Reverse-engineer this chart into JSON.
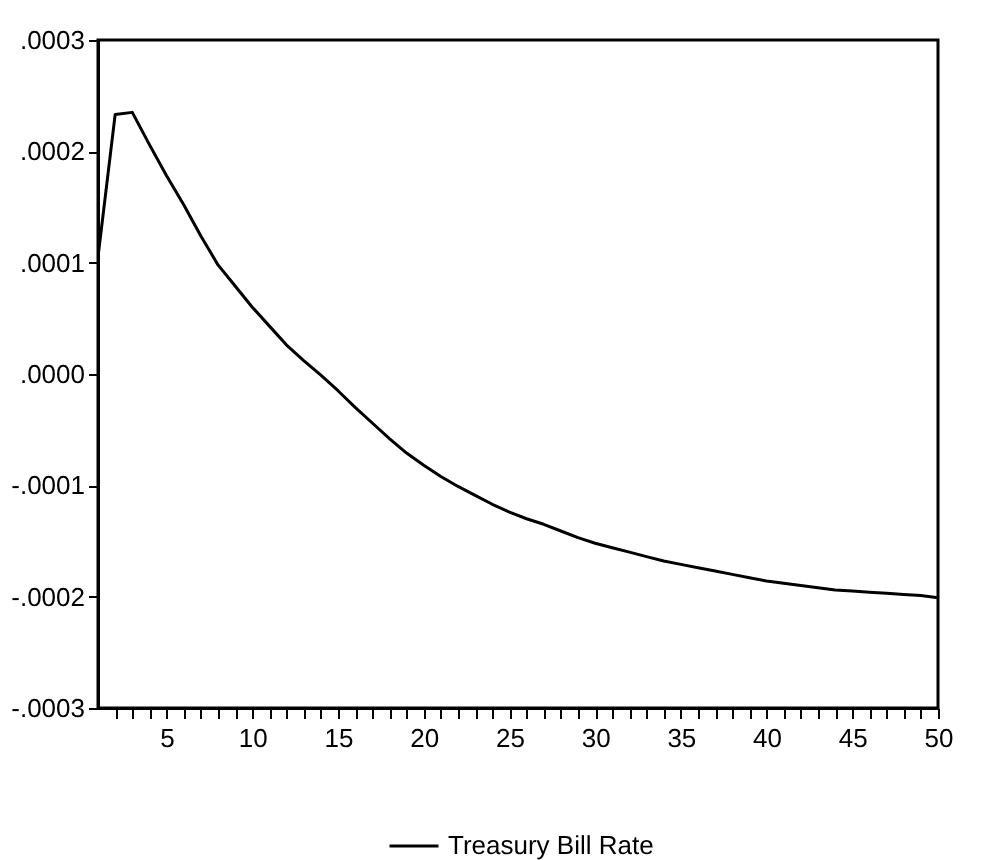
{
  "chart_data": {
    "type": "line",
    "x": [
      1,
      2,
      3,
      4,
      5,
      6,
      7,
      8,
      9,
      10,
      11,
      12,
      13,
      14,
      15,
      16,
      17,
      18,
      19,
      20,
      21,
      22,
      23,
      24,
      25,
      26,
      27,
      28,
      29,
      30,
      31,
      32,
      33,
      34,
      35,
      36,
      37,
      38,
      39,
      40,
      41,
      42,
      43,
      44,
      45,
      46,
      47,
      48,
      49,
      50
    ],
    "series": [
      {
        "name": "Treasury Bill Rate",
        "color": "#000000",
        "values": [
          0.000105,
          0.000233,
          0.000235,
          0.000206,
          0.000178,
          0.000152,
          0.000124,
          9.8e-05,
          7.9e-05,
          6e-05,
          4.3e-05,
          2.6e-05,
          1.2e-05,
          -1e-06,
          -1.5e-05,
          -3e-05,
          -4.4e-05,
          -5.8e-05,
          -7.1e-05,
          -8.2e-05,
          -9.2e-05,
          -0.000101,
          -0.000109,
          -0.000117,
          -0.000124,
          -0.00013,
          -0.000135,
          -0.000141,
          -0.000147,
          -0.000152,
          -0.000156,
          -0.00016,
          -0.000164,
          -0.000168,
          -0.000171,
          -0.000174,
          -0.000177,
          -0.00018,
          -0.000183,
          -0.000186,
          -0.000188,
          -0.00019,
          -0.000192,
          -0.000194,
          -0.000195,
          -0.000196,
          -0.000197,
          -0.000198,
          -0.000199,
          -0.000201
        ]
      }
    ],
    "xlim": [
      1,
      50
    ],
    "xticks": [
      {
        "value": 2,
        "label": null
      },
      {
        "value": 3,
        "label": null
      },
      {
        "value": 4,
        "label": null
      },
      5,
      {
        "value": 6,
        "label": null
      },
      {
        "value": 7,
        "label": null
      },
      {
        "value": 8,
        "label": null
      },
      {
        "value": 9,
        "label": null
      },
      10,
      {
        "value": 11,
        "label": null
      },
      {
        "value": 12,
        "label": null
      },
      {
        "value": 13,
        "label": null
      },
      {
        "value": 14,
        "label": null
      },
      15,
      {
        "value": 16,
        "label": null
      },
      {
        "value": 17,
        "label": null
      },
      {
        "value": 18,
        "label": null
      },
      {
        "value": 19,
        "label": null
      },
      20,
      {
        "value": 21,
        "label": null
      },
      {
        "value": 22,
        "label": null
      },
      {
        "value": 23,
        "label": null
      },
      {
        "value": 24,
        "label": null
      },
      25,
      {
        "value": 26,
        "label": null
      },
      {
        "value": 27,
        "label": null
      },
      {
        "value": 28,
        "label": null
      },
      {
        "value": 29,
        "label": null
      },
      30,
      {
        "value": 31,
        "label": null
      },
      {
        "value": 32,
        "label": null
      },
      {
        "value": 33,
        "label": null
      },
      {
        "value": 34,
        "label": null
      },
      35,
      {
        "value": 36,
        "label": null
      },
      {
        "value": 37,
        "label": null
      },
      {
        "value": 38,
        "label": null
      },
      {
        "value": 39,
        "label": null
      },
      40,
      {
        "value": 41,
        "label": null
      },
      {
        "value": 42,
        "label": null
      },
      {
        "value": 43,
        "label": null
      },
      {
        "value": 44,
        "label": null
      },
      45,
      {
        "value": 46,
        "label": null
      },
      {
        "value": 47,
        "label": null
      },
      {
        "value": 48,
        "label": null
      },
      {
        "value": 49,
        "label": null
      },
      50
    ],
    "ylim": [
      -0.0003,
      0.0003
    ],
    "yticks": [
      {
        "value": -0.0003,
        "label": "-.0003"
      },
      {
        "value": -0.0002,
        "label": "-.0002"
      },
      {
        "value": -0.0001,
        "label": "-.0001"
      },
      {
        "value": 0,
        "label": ".0000"
      },
      {
        "value": 0.0001,
        "label": ".0001"
      },
      {
        "value": 0.0002,
        "label": ".0002"
      },
      {
        "value": 0.0003,
        "label": ".0003"
      }
    ],
    "grid": false,
    "legend": "bottom",
    "marker": "none",
    "line_style": "solid"
  }
}
